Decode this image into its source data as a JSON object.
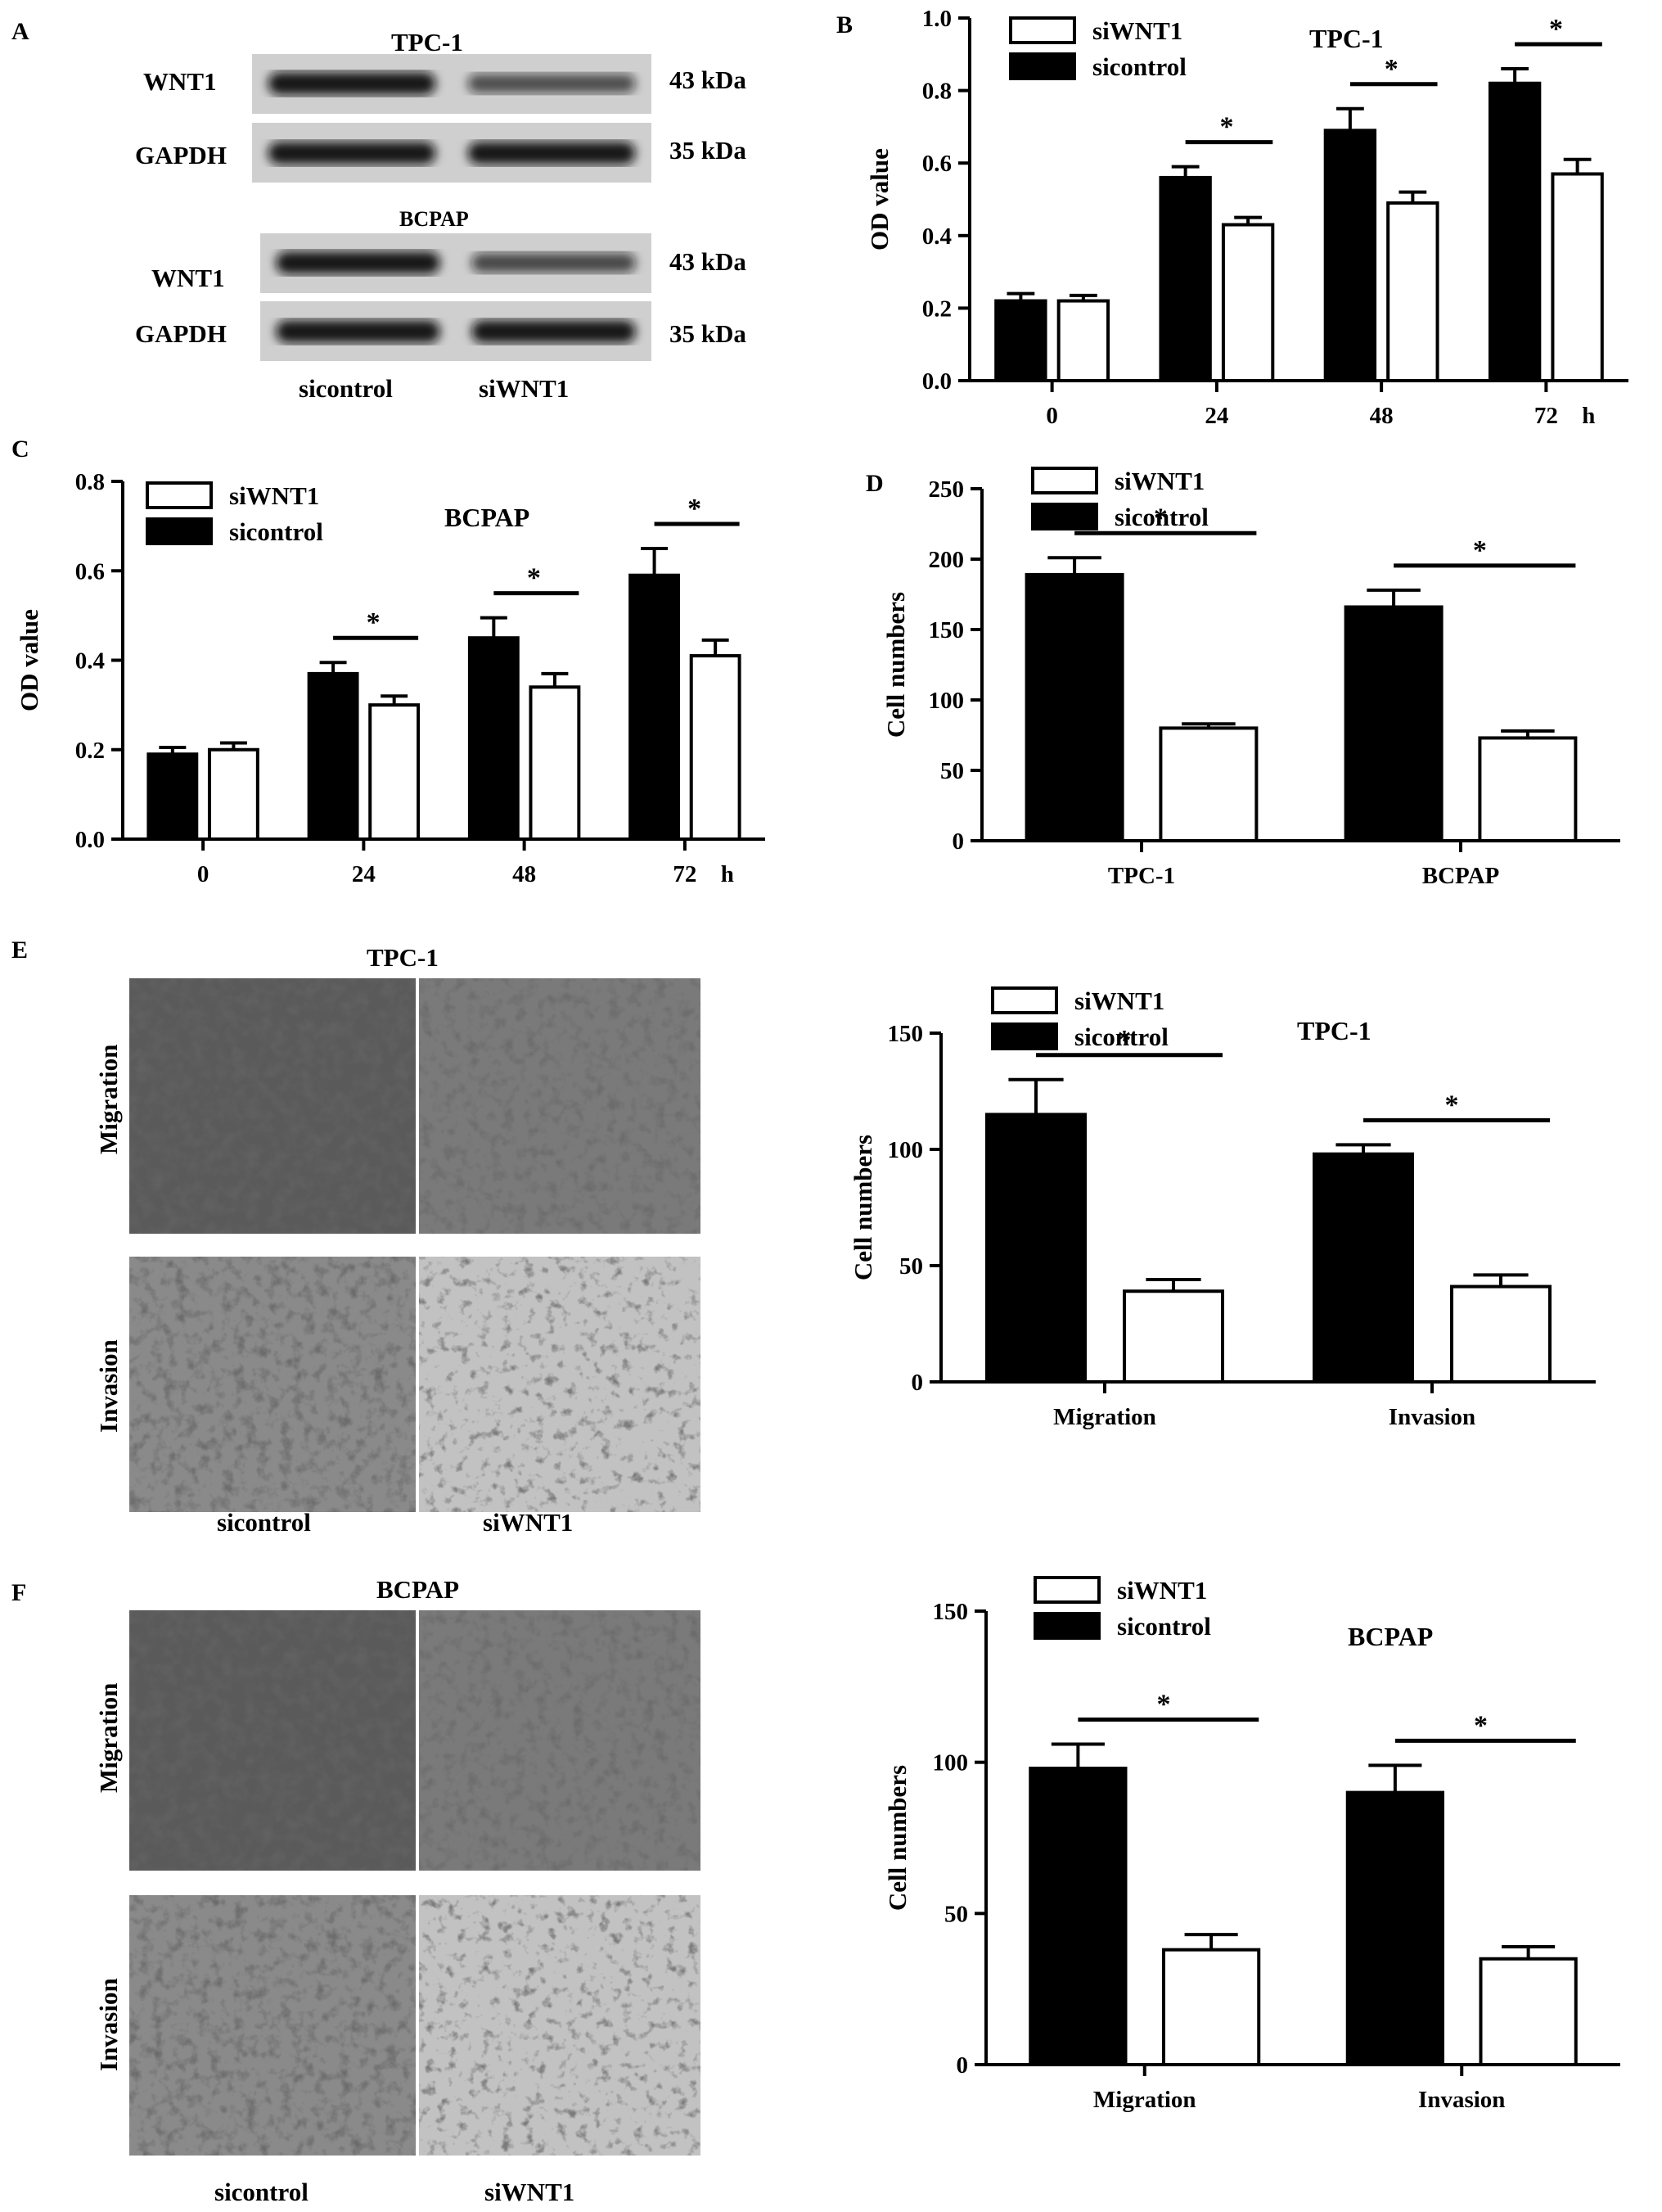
{
  "panels": {
    "A": {
      "letter": "A",
      "blots": [
        {
          "cell_line": "TPC-1",
          "rows": [
            {
              "protein": "WNT1",
              "kda": "43 kDa",
              "band": [
                1.0,
                0.55
              ]
            },
            {
              "protein": "GAPDH",
              "kda": "35 kDa",
              "band": [
                1.0,
                1.0
              ]
            }
          ]
        },
        {
          "cell_line": "BCPAP",
          "rows": [
            {
              "protein": "WNT1",
              "kda": "43 kDa",
              "band": [
                1.0,
                0.6
              ]
            },
            {
              "protein": "GAPDH",
              "kda": "35 kDa",
              "band": [
                1.0,
                1.0
              ]
            }
          ]
        }
      ],
      "lanes": [
        "sicontrol",
        "siWNT1"
      ]
    },
    "E": {
      "letter": "E",
      "title": "TPC-1",
      "rows": [
        "Migration",
        "Invasion"
      ],
      "cols": [
        "sicontrol",
        "siWNT1"
      ]
    },
    "F": {
      "letter": "F",
      "title": "BCPAP",
      "rows": [
        "Migration",
        "Invasion"
      ],
      "cols": [
        "sicontrol",
        "siWNT1"
      ]
    }
  },
  "chart_data": [
    {
      "panel": "B",
      "type": "bar",
      "title": "TPC-1",
      "xlabel": "",
      "ylabel": "OD value",
      "x_unit": "h",
      "categories": [
        "0",
        "24",
        "48",
        "72"
      ],
      "ylim": [
        0,
        1.0
      ],
      "yticks": [
        "0.0",
        "0.2",
        "0.4",
        "0.6",
        "0.8",
        "1.0"
      ],
      "legend": [
        "siWNT1",
        "sicontrol"
      ],
      "series": [
        {
          "name": "sicontrol",
          "color": "#000000",
          "values": [
            0.22,
            0.56,
            0.69,
            0.82
          ],
          "err": [
            0.02,
            0.03,
            0.06,
            0.04
          ]
        },
        {
          "name": "siWNT1",
          "color": "#ffffff",
          "values": [
            0.22,
            0.43,
            0.49,
            0.57
          ],
          "err": [
            0.015,
            0.02,
            0.03,
            0.04
          ]
        }
      ],
      "significance": [
        false,
        true,
        true,
        true
      ],
      "mark": "*"
    },
    {
      "panel": "C",
      "type": "bar",
      "title": "BCPAP",
      "xlabel": "",
      "ylabel": "OD value",
      "x_unit": "h",
      "categories": [
        "0",
        "24",
        "48",
        "72"
      ],
      "ylim": [
        0,
        0.8
      ],
      "yticks": [
        "0.0",
        "0.2",
        "0.4",
        "0.6",
        "0.8"
      ],
      "legend": [
        "siWNT1",
        "sicontrol"
      ],
      "series": [
        {
          "name": "sicontrol",
          "color": "#000000",
          "values": [
            0.19,
            0.37,
            0.45,
            0.59
          ],
          "err": [
            0.015,
            0.025,
            0.045,
            0.06
          ]
        },
        {
          "name": "siWNT1",
          "color": "#ffffff",
          "values": [
            0.2,
            0.3,
            0.34,
            0.41
          ],
          "err": [
            0.015,
            0.02,
            0.03,
            0.035
          ]
        }
      ],
      "significance": [
        false,
        true,
        true,
        true
      ],
      "mark": "*"
    },
    {
      "panel": "D",
      "type": "bar",
      "title": "",
      "xlabel": "",
      "ylabel": "Cell numbers",
      "x_unit": "",
      "categories": [
        "TPC-1",
        "BCPAP"
      ],
      "ylim": [
        0,
        250
      ],
      "yticks": [
        "0",
        "50",
        "100",
        "150",
        "200",
        "250"
      ],
      "legend": [
        "siWNT1",
        "sicontrol"
      ],
      "series": [
        {
          "name": "sicontrol",
          "color": "#000000",
          "values": [
            189,
            166
          ],
          "err": [
            12,
            12
          ]
        },
        {
          "name": "siWNT1",
          "color": "#ffffff",
          "values": [
            80,
            73
          ],
          "err": [
            3,
            5
          ]
        }
      ],
      "significance": [
        true,
        true
      ],
      "mark": "*"
    },
    {
      "panel": "E",
      "type": "bar",
      "title": "TPC-1",
      "xlabel": "",
      "ylabel": "Cell numbers",
      "x_unit": "",
      "categories": [
        "Migration",
        "Invasion"
      ],
      "ylim": [
        0,
        150
      ],
      "yticks": [
        "0",
        "50",
        "100",
        "150"
      ],
      "legend": [
        "siWNT1",
        "sicontrol"
      ],
      "series": [
        {
          "name": "sicontrol",
          "color": "#000000",
          "values": [
            115,
            98
          ],
          "err": [
            15,
            4
          ]
        },
        {
          "name": "siWNT1",
          "color": "#ffffff",
          "values": [
            39,
            41
          ],
          "err": [
            5,
            5
          ]
        }
      ],
      "significance": [
        true,
        true
      ],
      "mark": "*"
    },
    {
      "panel": "F",
      "type": "bar",
      "title": "BCPAP",
      "xlabel": "",
      "ylabel": "Cell numbers",
      "x_unit": "",
      "categories": [
        "Migration",
        "Invasion"
      ],
      "ylim": [
        0,
        150
      ],
      "yticks": [
        "0",
        "50",
        "100",
        "150"
      ],
      "legend": [
        "siWNT1",
        "sicontrol"
      ],
      "series": [
        {
          "name": "sicontrol",
          "color": "#000000",
          "values": [
            98,
            90
          ],
          "err": [
            8,
            9
          ]
        },
        {
          "name": "siWNT1",
          "color": "#ffffff",
          "values": [
            38,
            35
          ],
          "err": [
            5,
            4
          ]
        }
      ],
      "significance": [
        true,
        true
      ],
      "mark": "*"
    }
  ]
}
